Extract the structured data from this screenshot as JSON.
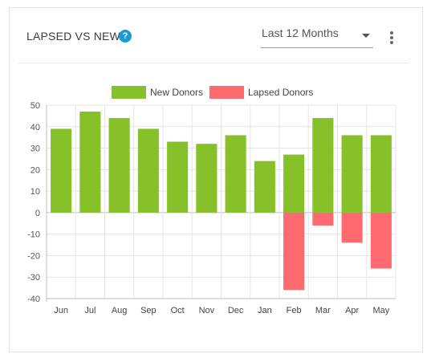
{
  "header": {
    "title": "LAPSED VS NEW",
    "help_glyph": "?",
    "period_select": "Last 12 Months"
  },
  "colors": {
    "new": "#86c12a",
    "lapsed": "#fe6a6f",
    "help": "#1a9bd7"
  },
  "chart_data": {
    "type": "bar",
    "stacked": true,
    "categories": [
      "Jun",
      "Jul",
      "Aug",
      "Sep",
      "Oct",
      "Nov",
      "Dec",
      "Jan",
      "Feb",
      "Mar",
      "Apr",
      "May"
    ],
    "series": [
      {
        "name": "New Donors",
        "values": [
          39,
          47,
          44,
          39,
          33,
          32,
          36,
          24,
          27,
          44,
          36,
          36
        ]
      },
      {
        "name": "Lapsed Donors",
        "values": [
          0,
          0,
          0,
          0,
          0,
          0,
          0,
          0,
          -36,
          -6,
          -14,
          -26
        ]
      }
    ],
    "ylim": [
      -40,
      50
    ],
    "yticks": [
      50,
      40,
      30,
      20,
      10,
      0,
      -10,
      -20,
      -30,
      -40
    ],
    "grid": true,
    "legend": "top-center"
  }
}
